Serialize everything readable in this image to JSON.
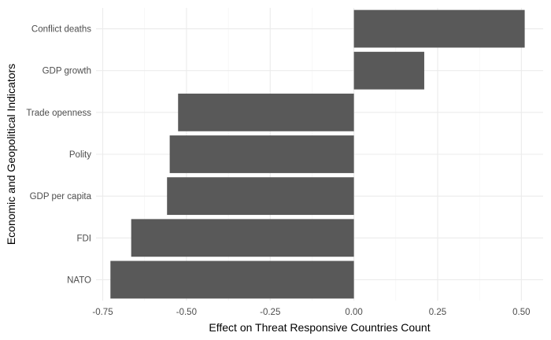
{
  "chart_data": {
    "type": "bar",
    "orientation": "horizontal",
    "title": "",
    "xlabel": "Effect on Threat Responsive Countries Count",
    "ylabel": "Economic and Geopolitical Indicators",
    "categories": [
      "Conflict deaths",
      "GDP growth",
      "Trade openness",
      "Polity",
      "GDP per capita",
      "FDI",
      "NATO"
    ],
    "values": [
      0.51,
      0.21,
      -0.525,
      -0.55,
      -0.558,
      -0.665,
      -0.727
    ],
    "xlim": [
      -0.77,
      0.565
    ],
    "xticks": [
      -0.75,
      -0.5,
      -0.25,
      0,
      0.25,
      0.5
    ],
    "xtick_labels": [
      "-0.75",
      "-0.50",
      "-0.25",
      "0.00",
      "0.25",
      "0.50"
    ],
    "grid": true,
    "legend": "none",
    "bar_color": "#595959",
    "theme": "minimal"
  }
}
